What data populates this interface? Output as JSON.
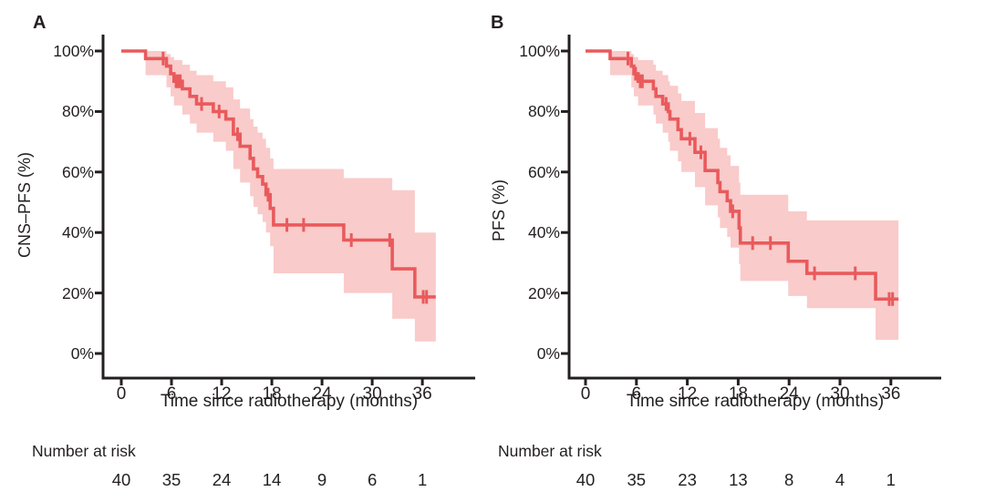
{
  "figure": {
    "background": "#ffffff",
    "text_color": "#231f20",
    "axis_color": "#231f20",
    "curve_color": "#e95a5c",
    "band_color": "#f9cbca"
  },
  "chart_data": [
    {
      "type": "line",
      "subtype": "kaplan-meier-step",
      "panel": "A",
      "ylabel": "CNS–PFS (%)",
      "xlabel": "Time since radiotherapy (months)",
      "risk_label": "Number at risk",
      "xlim": [
        0,
        42
      ],
      "ylim": [
        0,
        100
      ],
      "grid": false,
      "legend": "none",
      "x_ticks": [
        0,
        6,
        12,
        18,
        24,
        30,
        36
      ],
      "y_ticks": [
        [
          0,
          "0%"
        ],
        [
          20,
          "20%"
        ],
        [
          40,
          "40%"
        ],
        [
          60,
          "60%"
        ],
        [
          80,
          "80%"
        ],
        [
          100,
          "100%"
        ]
      ],
      "steps_pct": [
        [
          0,
          100
        ],
        [
          2.9,
          97.5
        ],
        [
          5.4,
          95
        ],
        [
          5.9,
          92.5
        ],
        [
          6.3,
          90
        ],
        [
          7.3,
          87.5
        ],
        [
          8.2,
          85
        ],
        [
          9.0,
          82.5
        ],
        [
          11.0,
          80
        ],
        [
          12.5,
          77.5
        ],
        [
          13.4,
          72.5
        ],
        [
          14.2,
          68.5
        ],
        [
          15.4,
          64.5
        ],
        [
          15.8,
          61
        ],
        [
          16.3,
          58.5
        ],
        [
          16.9,
          56
        ],
        [
          17.3,
          52.5
        ],
        [
          17.8,
          48
        ],
        [
          18.2,
          42.5
        ],
        [
          26.6,
          37.5
        ],
        [
          32.4,
          28
        ],
        [
          35.1,
          18.7
        ]
      ],
      "censor_marks_pct": [
        [
          5.0,
          97.5
        ],
        [
          6.55,
          90
        ],
        [
          6.8,
          90
        ],
        [
          7.05,
          90
        ],
        [
          9.6,
          82.5
        ],
        [
          11.7,
          80
        ],
        [
          13.9,
          72.5
        ],
        [
          17.55,
          52.5
        ],
        [
          19.8,
          42.5
        ],
        [
          21.8,
          42.5
        ],
        [
          27.5,
          37.5
        ],
        [
          32.1,
          37.5
        ],
        [
          36.1,
          18.7
        ],
        [
          36.5,
          18.7
        ]
      ],
      "ci_band_pct": [
        [
          2.9,
          92,
          100
        ],
        [
          5.4,
          88,
          99
        ],
        [
          5.9,
          85,
          98
        ],
        [
          6.3,
          82,
          97
        ],
        [
          7.3,
          79,
          95.5
        ],
        [
          8.2,
          76,
          93.5
        ],
        [
          9.0,
          73,
          92
        ],
        [
          11.0,
          70,
          90
        ],
        [
          12.5,
          67,
          88
        ],
        [
          13.4,
          61,
          84
        ],
        [
          14.2,
          56.5,
          81
        ],
        [
          15.4,
          52,
          77.5
        ],
        [
          15.8,
          48.5,
          75
        ],
        [
          16.3,
          46,
          73
        ],
        [
          16.9,
          43.5,
          71
        ],
        [
          17.3,
          40,
          68
        ],
        [
          17.8,
          35.5,
          64.5
        ],
        [
          18.2,
          26.5,
          61
        ],
        [
          26.6,
          20,
          58
        ],
        [
          32.4,
          11.5,
          54
        ],
        [
          35.1,
          4,
          40
        ]
      ],
      "curve_end_t": 37.6,
      "number_at_risk": {
        "times": [
          0,
          6,
          12,
          18,
          24,
          30,
          36
        ],
        "values": [
          40,
          35,
          24,
          14,
          9,
          6,
          1
        ]
      }
    },
    {
      "type": "line",
      "subtype": "kaplan-meier-step",
      "panel": "B",
      "ylabel": "PFS (%)",
      "xlabel": "Time since radiotherapy (months)",
      "risk_label": "Number at risk",
      "xlim": [
        0,
        42
      ],
      "ylim": [
        0,
        100
      ],
      "grid": false,
      "legend": "none",
      "x_ticks": [
        0,
        6,
        12,
        18,
        24,
        30,
        36
      ],
      "y_ticks": [
        [
          0,
          "0%"
        ],
        [
          20,
          "20%"
        ],
        [
          40,
          "40%"
        ],
        [
          60,
          "60%"
        ],
        [
          80,
          "80%"
        ],
        [
          100,
          "100%"
        ]
      ],
      "steps_pct": [
        [
          0,
          100
        ],
        [
          2.9,
          97.5
        ],
        [
          5.4,
          95
        ],
        [
          5.7,
          92.5
        ],
        [
          6.2,
          90
        ],
        [
          8.0,
          87.5
        ],
        [
          8.3,
          85
        ],
        [
          9.1,
          82.5
        ],
        [
          9.75,
          80
        ],
        [
          9.95,
          77.5
        ],
        [
          10.9,
          74
        ],
        [
          11.3,
          71
        ],
        [
          12.9,
          66.5
        ],
        [
          14.1,
          60.5
        ],
        [
          15.6,
          56.5
        ],
        [
          15.85,
          53.5
        ],
        [
          16.7,
          50.5
        ],
        [
          17.1,
          47
        ],
        [
          18.1,
          41.5
        ],
        [
          18.25,
          36.5
        ],
        [
          23.9,
          30.5
        ],
        [
          26.1,
          26.5
        ],
        [
          34.2,
          18
        ]
      ],
      "censor_marks_pct": [
        [
          5.0,
          97.5
        ],
        [
          5.9,
          92.5
        ],
        [
          6.45,
          90
        ],
        [
          6.7,
          90
        ],
        [
          9.5,
          82.5
        ],
        [
          12.3,
          71
        ],
        [
          13.6,
          66.5
        ],
        [
          17.35,
          47
        ],
        [
          19.7,
          36.5
        ],
        [
          21.8,
          36.5
        ],
        [
          27.0,
          26.5
        ],
        [
          31.8,
          26.5
        ],
        [
          35.8,
          18
        ],
        [
          36.2,
          18
        ]
      ],
      "ci_band_pct": [
        [
          2.9,
          92,
          100
        ],
        [
          5.4,
          88,
          99
        ],
        [
          5.7,
          85,
          98
        ],
        [
          6.2,
          82,
          97
        ],
        [
          8.0,
          79,
          95.5
        ],
        [
          8.3,
          76,
          93.5
        ],
        [
          9.1,
          73,
          92
        ],
        [
          9.75,
          70,
          90
        ],
        [
          9.95,
          67,
          88.5
        ],
        [
          10.9,
          63.5,
          86
        ],
        [
          11.3,
          60,
          83.5
        ],
        [
          12.9,
          55,
          79.5
        ],
        [
          14.1,
          49,
          74.5
        ],
        [
          15.6,
          45,
          71
        ],
        [
          15.85,
          41.5,
          68
        ],
        [
          16.7,
          38.5,
          65.5
        ],
        [
          17.1,
          35,
          62
        ],
        [
          18.1,
          29.5,
          56.5
        ],
        [
          18.25,
          24,
          52.5
        ],
        [
          23.9,
          19,
          47
        ],
        [
          26.1,
          15,
          44
        ],
        [
          34.2,
          4.5,
          44
        ]
      ],
      "curve_end_t": 36.9,
      "number_at_risk": {
        "times": [
          0,
          6,
          12,
          18,
          24,
          30,
          36
        ],
        "values": [
          40,
          35,
          23,
          13,
          8,
          4,
          1
        ]
      }
    }
  ]
}
